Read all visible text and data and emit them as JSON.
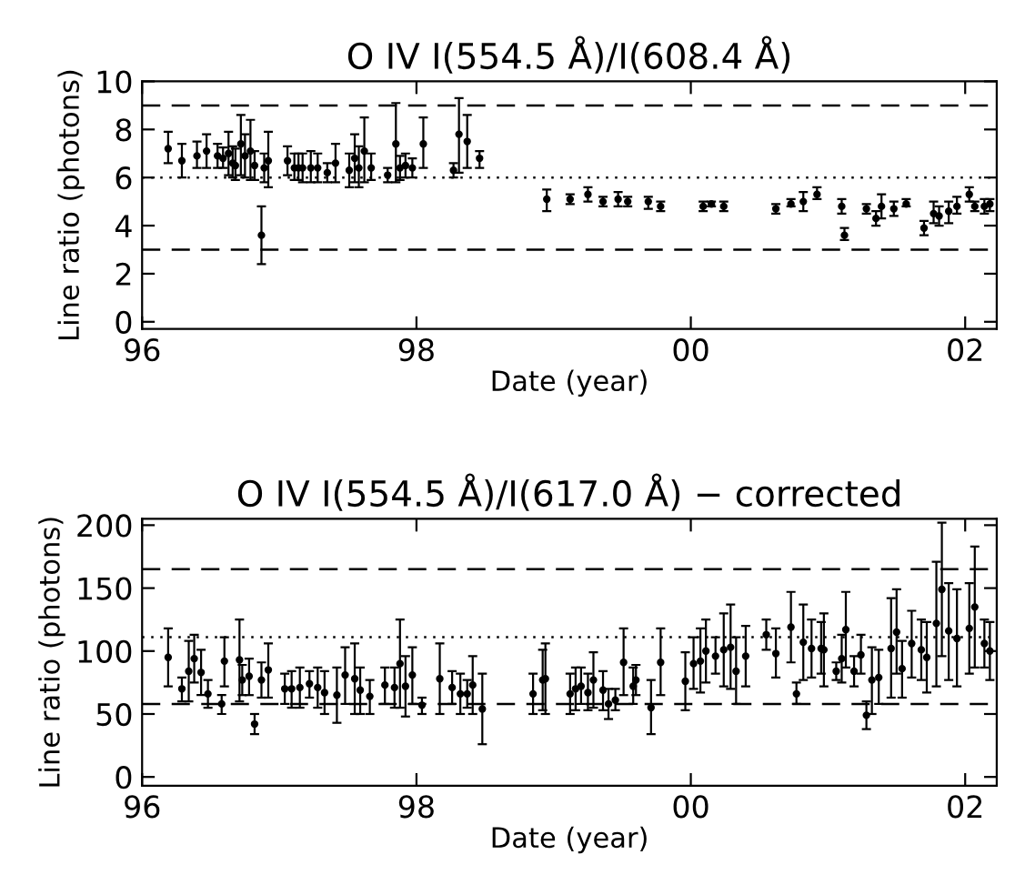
{
  "chart_data": [
    {
      "type": "scatter",
      "title": "O IV I(554.5 Å)/I(608.4 Å)",
      "xlabel": "Date (year)",
      "ylabel": "Line ratio (photons)",
      "marker": "circle",
      "grid": false,
      "legend": false,
      "xlim": [
        1996,
        2002.23
      ],
      "xticks": [
        {
          "value": 1996,
          "label": "96"
        },
        {
          "value": 1998,
          "label": "98"
        },
        {
          "value": 2000,
          "label": "00"
        },
        {
          "value": 2002,
          "label": "02"
        }
      ],
      "ylim": [
        -0.3,
        10
      ],
      "yticks": [
        0,
        2,
        4,
        6,
        8,
        10
      ],
      "ref_lines": [
        {
          "axis": "y",
          "value": 9,
          "line_style": "dashed",
          "color": "#000000"
        },
        {
          "axis": "y",
          "value": 6,
          "line_style": "dotted",
          "color": "#000000"
        },
        {
          "axis": "y",
          "value": 3,
          "line_style": "dashed",
          "color": "#000000"
        }
      ],
      "series": [
        {
          "color": "#000000",
          "x": [
            1996.19,
            1996.29,
            1996.4,
            1996.47,
            1996.55,
            1996.59,
            1996.63,
            1996.66,
            1996.68,
            1996.72,
            1996.75,
            1996.79,
            1996.82,
            1996.87,
            1996.89,
            1996.92,
            1997.06,
            1997.11,
            1997.14,
            1997.17,
            1997.23,
            1997.28,
            1997.35,
            1997.41,
            1997.51,
            1997.55,
            1997.58,
            1997.62,
            1997.67,
            1997.79,
            1997.85,
            1997.88,
            1997.92,
            1997.97,
            1998.05,
            1998.27,
            1998.31,
            1998.37,
            1998.46,
            1998.95,
            1999.12,
            1999.25,
            1999.36,
            1999.47,
            1999.54,
            1999.69,
            1999.78,
            2000.09,
            2000.15,
            2000.24,
            2000.62,
            2000.73,
            2000.82,
            2000.92,
            2001.1,
            2001.12,
            2001.28,
            2001.35,
            2001.39,
            2001.48,
            2001.57,
            2001.7,
            2001.77,
            2001.81,
            2001.88,
            2001.94,
            2002.03,
            2002.07,
            2002.14,
            2002.18
          ],
          "values": [
            7.2,
            6.7,
            6.9,
            7.1,
            6.9,
            6.8,
            7.0,
            6.6,
            6.5,
            7.4,
            6.9,
            7.1,
            6.5,
            3.6,
            6.4,
            6.7,
            6.7,
            6.4,
            6.4,
            6.4,
            6.4,
            6.4,
            6.2,
            6.6,
            6.3,
            6.8,
            6.4,
            7.1,
            6.4,
            6.1,
            7.4,
            6.4,
            6.5,
            6.4,
            7.4,
            6.3,
            7.8,
            7.5,
            6.8,
            5.1,
            5.1,
            5.3,
            5.0,
            5.1,
            5.0,
            5.0,
            4.8,
            4.8,
            4.9,
            4.8,
            4.7,
            4.9,
            5.0,
            5.3,
            4.8,
            3.6,
            4.7,
            4.3,
            4.8,
            4.7,
            4.9,
            3.9,
            4.5,
            4.4,
            4.6,
            4.8,
            5.3,
            4.8,
            4.8,
            4.9
          ],
          "errors": [
            [
              6.6,
              7.9
            ],
            [
              6.0,
              7.4
            ],
            [
              6.4,
              7.5
            ],
            [
              6.4,
              7.8
            ],
            [
              6.4,
              7.4
            ],
            [
              6.4,
              7.25
            ],
            [
              6.1,
              7.9
            ],
            [
              6.0,
              7.3
            ],
            [
              5.9,
              7.2
            ],
            [
              6.1,
              8.6
            ],
            [
              6.0,
              7.8
            ],
            [
              5.9,
              8.4
            ],
            [
              5.9,
              7.1
            ],
            [
              2.4,
              4.8
            ],
            [
              5.8,
              7.0
            ],
            [
              5.6,
              7.9
            ],
            [
              6.1,
              7.3
            ],
            [
              5.9,
              7.0
            ],
            [
              5.9,
              7.0
            ],
            [
              5.8,
              7.0
            ],
            [
              5.8,
              7.1
            ],
            [
              5.8,
              7.0
            ],
            [
              5.8,
              6.6
            ],
            [
              5.8,
              7.4
            ],
            [
              5.6,
              7.0
            ],
            [
              5.8,
              7.8
            ],
            [
              5.6,
              7.3
            ],
            [
              5.8,
              8.5
            ],
            [
              5.9,
              7.0
            ],
            [
              5.8,
              6.4
            ],
            [
              5.8,
              9.1
            ],
            [
              5.9,
              6.9
            ],
            [
              6.0,
              7.0
            ],
            [
              6.0,
              6.8
            ],
            [
              6.4,
              8.5
            ],
            [
              6.0,
              6.6
            ],
            [
              6.2,
              9.3
            ],
            [
              6.4,
              8.6
            ],
            [
              6.4,
              7.1
            ],
            [
              4.6,
              5.5
            ],
            [
              4.9,
              5.3
            ],
            [
              5.0,
              5.6
            ],
            [
              4.8,
              5.2
            ],
            [
              4.8,
              5.4
            ],
            [
              4.8,
              5.2
            ],
            [
              4.7,
              5.2
            ],
            [
              4.6,
              5.0
            ],
            [
              4.6,
              5.0
            ],
            [
              4.8,
              5.0
            ],
            [
              4.6,
              5.0
            ],
            [
              4.5,
              4.9
            ],
            [
              4.8,
              5.1
            ],
            [
              4.6,
              5.4
            ],
            [
              5.1,
              5.6
            ],
            [
              4.5,
              5.1
            ],
            [
              3.4,
              3.9
            ],
            [
              4.5,
              4.9
            ],
            [
              4.0,
              4.6
            ],
            [
              4.3,
              5.3
            ],
            [
              4.4,
              5.0
            ],
            [
              4.8,
              5.1
            ],
            [
              3.6,
              4.2
            ],
            [
              4.1,
              5.0
            ],
            [
              4.0,
              4.8
            ],
            [
              4.1,
              5.0
            ],
            [
              4.5,
              5.2
            ],
            [
              5.0,
              5.6
            ],
            [
              4.6,
              5.0
            ],
            [
              4.5,
              5.1
            ],
            [
              4.6,
              5.1
            ]
          ]
        }
      ]
    },
    {
      "type": "scatter",
      "title": "O IV I(554.5 Å)/I(617.0 Å) − corrected",
      "xlabel": "Date (year)",
      "ylabel": "Line ratio (photons)",
      "marker": "circle",
      "grid": false,
      "legend": false,
      "xlim": [
        1996,
        2002.23
      ],
      "xticks": [
        {
          "value": 1996,
          "label": "96"
        },
        {
          "value": 1998,
          "label": "98"
        },
        {
          "value": 2000,
          "label": "00"
        },
        {
          "value": 2002,
          "label": "02"
        }
      ],
      "ylim": [
        -7,
        205
      ],
      "yticks": [
        0,
        50,
        100,
        150,
        200
      ],
      "ref_lines": [
        {
          "axis": "y",
          "value": 165,
          "line_style": "dashed",
          "color": "#000000"
        },
        {
          "axis": "y",
          "value": 111,
          "line_style": "dotted",
          "color": "#000000"
        },
        {
          "axis": "y",
          "value": 58,
          "line_style": "dashed",
          "color": "#000000"
        }
      ],
      "series": [
        {
          "color": "#000000",
          "x": [
            1996.19,
            1996.29,
            1996.34,
            1996.38,
            1996.43,
            1996.48,
            1996.58,
            1996.6,
            1996.71,
            1996.73,
            1996.78,
            1996.82,
            1996.87,
            1996.92,
            1997.04,
            1997.09,
            1997.15,
            1997.22,
            1997.28,
            1997.33,
            1997.42,
            1997.48,
            1997.55,
            1997.59,
            1997.66,
            1997.77,
            1997.84,
            1997.88,
            1997.92,
            1997.97,
            1998.04,
            1998.17,
            1998.26,
            1998.32,
            1998.37,
            1998.41,
            1998.48,
            1998.85,
            1998.92,
            1998.94,
            1999.12,
            1999.16,
            1999.2,
            1999.25,
            1999.29,
            1999.36,
            1999.4,
            1999.45,
            1999.51,
            1999.58,
            1999.6,
            1999.71,
            1999.78,
            1999.96,
            2000.02,
            2000.07,
            2000.11,
            2000.18,
            2000.24,
            2000.29,
            2000.33,
            2000.4,
            2000.55,
            2000.62,
            2000.73,
            2000.77,
            2000.82,
            2000.88,
            2000.95,
            2000.97,
            2001.06,
            2001.1,
            2001.13,
            2001.19,
            2001.24,
            2001.28,
            2001.32,
            2001.37,
            2001.46,
            2001.5,
            2001.54,
            2001.61,
            2001.68,
            2001.72,
            2001.79,
            2001.83,
            2001.88,
            2001.94,
            2002.03,
            2002.07,
            2002.14,
            2002.18
          ],
          "values": [
            95,
            70,
            84,
            94,
            83,
            66,
            58,
            92,
            93,
            77,
            80,
            42,
            77,
            85,
            70,
            70,
            71,
            74,
            71,
            67,
            65,
            81,
            78,
            69,
            64,
            73,
            71,
            90,
            72,
            81,
            57,
            78,
            71,
            66,
            66,
            73,
            54,
            66,
            77,
            78,
            66,
            70,
            72,
            67,
            77,
            69,
            58,
            61,
            91,
            72,
            77,
            55,
            91,
            76,
            90,
            92,
            100,
            96,
            101,
            103,
            84,
            96,
            113,
            98,
            119,
            66,
            107,
            102,
            102,
            101,
            84,
            94,
            117,
            84,
            97,
            49,
            77,
            79,
            102,
            115,
            86,
            106,
            101,
            95,
            122,
            149,
            116,
            110,
            118,
            135,
            106,
            100
          ],
          "errors": [
            [
              72,
              118
            ],
            [
              60,
              79
            ],
            [
              60,
              108
            ],
            [
              75,
              113
            ],
            [
              65,
              101
            ],
            [
              55,
              77
            ],
            [
              50,
              65
            ],
            [
              72,
              111
            ],
            [
              60,
              125
            ],
            [
              65,
              89
            ],
            [
              65,
              94
            ],
            [
              34,
              50
            ],
            [
              63,
              91
            ],
            [
              63,
              106
            ],
            [
              58,
              82
            ],
            [
              55,
              84
            ],
            [
              55,
              87
            ],
            [
              63,
              84
            ],
            [
              55,
              87
            ],
            [
              50,
              84
            ],
            [
              43,
              87
            ],
            [
              58,
              103
            ],
            [
              50,
              106
            ],
            [
              50,
              87
            ],
            [
              50,
              77
            ],
            [
              58,
              87
            ],
            [
              55,
              87
            ],
            [
              55,
              125
            ],
            [
              48,
              96
            ],
            [
              58,
              103
            ],
            [
              50,
              63
            ],
            [
              50,
              106
            ],
            [
              58,
              84
            ],
            [
              50,
              82
            ],
            [
              55,
              77
            ],
            [
              50,
              96
            ],
            [
              26,
              82
            ],
            [
              50,
              82
            ],
            [
              53,
              101
            ],
            [
              50,
              106
            ],
            [
              50,
              82
            ],
            [
              53,
              87
            ],
            [
              58,
              87
            ],
            [
              53,
              82
            ],
            [
              55,
              99
            ],
            [
              53,
              84
            ],
            [
              46,
              70
            ],
            [
              53,
              70
            ],
            [
              65,
              118
            ],
            [
              58,
              87
            ],
            [
              65,
              89
            ],
            [
              34,
              77
            ],
            [
              65,
              118
            ],
            [
              53,
              99
            ],
            [
              70,
              111
            ],
            [
              67,
              118
            ],
            [
              75,
              125
            ],
            [
              82,
              111
            ],
            [
              72,
              130
            ],
            [
              70,
              137
            ],
            [
              58,
              111
            ],
            [
              72,
              120
            ],
            [
              101,
              125
            ],
            [
              79,
              118
            ],
            [
              91,
              147
            ],
            [
              58,
              75
            ],
            [
              77,
              137
            ],
            [
              79,
              125
            ],
            [
              82,
              123
            ],
            [
              72,
              130
            ],
            [
              77,
              91
            ],
            [
              75,
              113
            ],
            [
              87,
              147
            ],
            [
              72,
              96
            ],
            [
              82,
              113
            ],
            [
              38,
              60
            ],
            [
              50,
              103
            ],
            [
              58,
              101
            ],
            [
              63,
              142
            ],
            [
              82,
              149
            ],
            [
              63,
              108
            ],
            [
              79,
              132
            ],
            [
              77,
              125
            ],
            [
              67,
              123
            ],
            [
              72,
              171
            ],
            [
              96,
              202
            ],
            [
              77,
              154
            ],
            [
              72,
              149
            ],
            [
              82,
              154
            ],
            [
              87,
              183
            ],
            [
              87,
              125
            ],
            [
              77,
              123
            ]
          ]
        }
      ]
    }
  ]
}
